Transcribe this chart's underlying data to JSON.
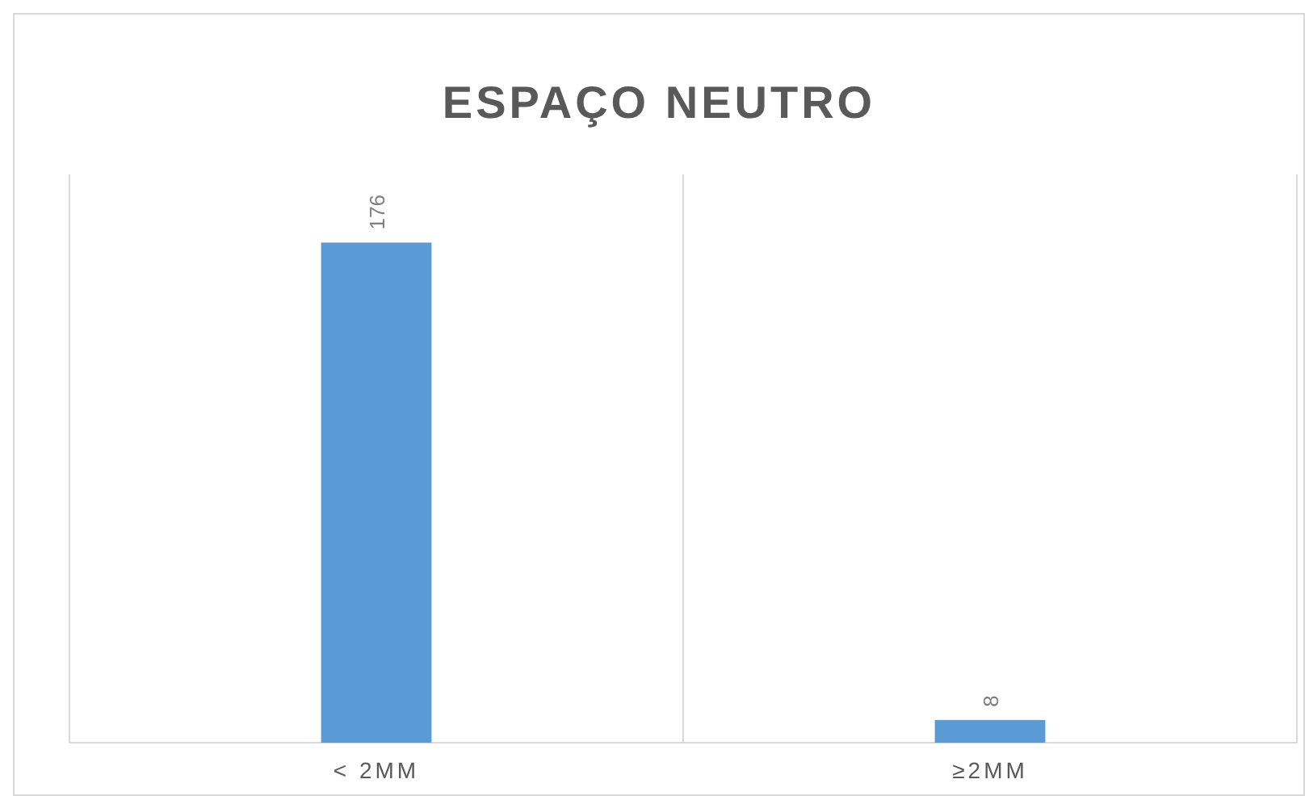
{
  "chart_data": {
    "type": "bar",
    "title": "ESPAÇO NEUTRO",
    "categories": [
      "< 2MM",
      "≥2MM"
    ],
    "values": [
      176,
      8
    ],
    "color": "#5b9bd5",
    "ylim": [
      0,
      200
    ],
    "tick_labels": "x",
    "grid": "x",
    "data_labels": true
  }
}
